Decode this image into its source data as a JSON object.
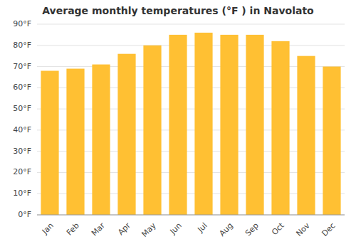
{
  "chart_data": {
    "type": "bar",
    "title": "Average monthly temperatures (°F ) in Navolato",
    "categories": [
      "Jan",
      "Feb",
      "Mar",
      "Apr",
      "May",
      "Jun",
      "Jul",
      "Aug",
      "Sep",
      "Oct",
      "Nov",
      "Dec"
    ],
    "values": [
      68,
      69,
      71,
      76,
      80,
      85,
      86,
      85,
      85,
      82,
      75,
      70
    ],
    "color": "#FFC033",
    "ylim": [
      0,
      90
    ],
    "yticks": [
      {
        "value": 0,
        "label": "0°F"
      },
      {
        "value": 10,
        "label": "10°F"
      },
      {
        "value": 20,
        "label": "20°F"
      },
      {
        "value": 30,
        "label": "30°F"
      },
      {
        "value": 40,
        "label": "40°F"
      },
      {
        "value": 50,
        "label": "50°F"
      },
      {
        "value": 60,
        "label": "60°F"
      },
      {
        "value": 70,
        "label": "70°F"
      },
      {
        "value": 80,
        "label": "80°F"
      },
      {
        "value": 90,
        "label": "90°F"
      }
    ],
    "grid": true
  }
}
